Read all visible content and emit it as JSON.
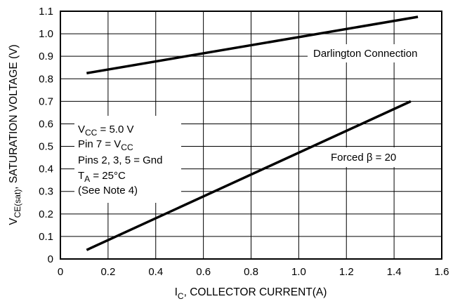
{
  "chart_data": {
    "type": "line",
    "title": "",
    "xlabel": {
      "main": "I",
      "sub": "C",
      "rest": ", COLLECTOR CURRENT(A)"
    },
    "ylabel": {
      "main": "V",
      "sub": "CE(sat)",
      "rest": ", SATURATION VOLTAGE (V)"
    },
    "xlim": [
      0,
      1.6
    ],
    "ylim": [
      0,
      1.1
    ],
    "xticks": [
      "0",
      "0.2",
      "0.4",
      "0.6",
      "0.8",
      "1.0",
      "1.2",
      "1.4",
      "1.6"
    ],
    "yticks": [
      "0",
      "0.1",
      "0.2",
      "0.3",
      "0.4",
      "0.5",
      "0.6",
      "0.7",
      "0.8",
      "0.9",
      "1.0",
      "1.1"
    ],
    "grid": true,
    "series": [
      {
        "name": "Darlington Connection",
        "x": [
          0.11,
          1.5
        ],
        "y": [
          0.825,
          1.075
        ]
      },
      {
        "name": "Forced β = 20",
        "x": [
          0.11,
          1.47
        ],
        "y": [
          0.04,
          0.7
        ]
      }
    ],
    "conditions": [
      {
        "main": "V",
        "sub": "CC",
        "rest": " = 5.0 V"
      },
      {
        "main": "Pin 7 = V",
        "sub": "CC",
        "rest": ""
      },
      {
        "main": "Pins 2, 3, 5 = Gnd",
        "sub": "",
        "rest": ""
      },
      {
        "main": "T",
        "sub": "A",
        "rest": " = 25°C"
      },
      {
        "main": "(See Note 4)",
        "sub": "",
        "rest": ""
      }
    ]
  }
}
